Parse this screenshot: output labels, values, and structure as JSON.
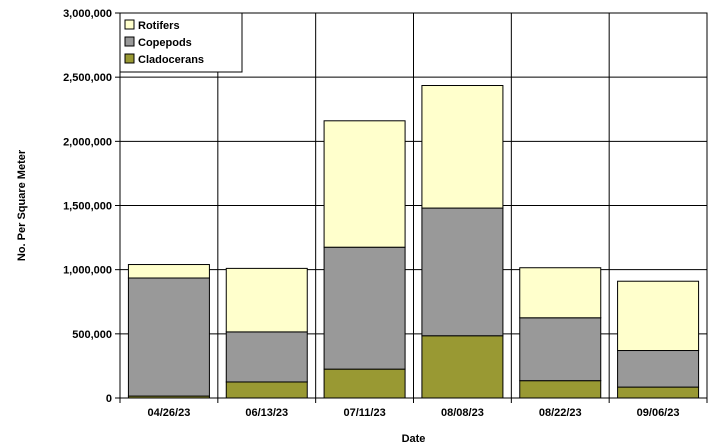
{
  "chart_data": {
    "type": "bar",
    "stacked": true,
    "title": "",
    "xlabel": "Date",
    "ylabel": "No. Per Square Meter",
    "ylim": [
      0,
      3000000
    ],
    "yticks": [
      0,
      500000,
      1000000,
      1500000,
      2000000,
      2500000,
      3000000
    ],
    "ytick_labels": [
      "0",
      "500,000",
      "1,000,000",
      "1,500,000",
      "2,000,000",
      "2,500,000",
      "3,000,000"
    ],
    "grid": true,
    "legend_position": "top-left",
    "categories": [
      "04/26/23",
      "06/13/23",
      "07/11/23",
      "08/08/23",
      "08/22/23",
      "09/06/23"
    ],
    "series": [
      {
        "name": "Cladocerans",
        "color": "#999933",
        "values": [
          15000,
          125000,
          225000,
          485000,
          135000,
          85000
        ]
      },
      {
        "name": "Copepods",
        "color": "#999999",
        "values": [
          920000,
          390000,
          950000,
          995000,
          490000,
          285000
        ]
      },
      {
        "name": "Rotifers",
        "color": "#ffffcc",
        "values": [
          105000,
          495000,
          985000,
          955000,
          390000,
          540000
        ]
      }
    ],
    "legend_order": [
      "Rotifers",
      "Copepods",
      "Cladocerans"
    ]
  }
}
